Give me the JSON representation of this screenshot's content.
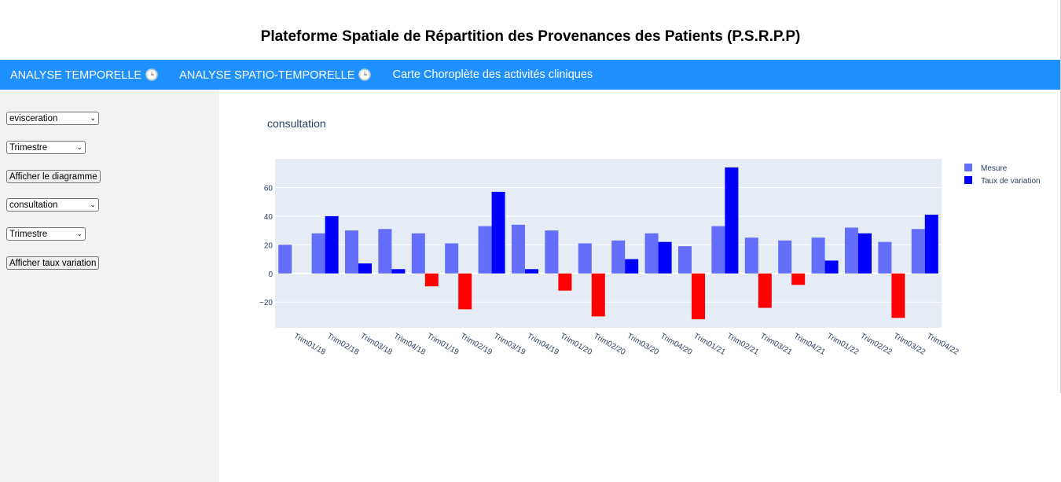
{
  "app": {
    "title": "Plateforme Spatiale de Répartition des Provenances des Patients (P.S.R.P.P)"
  },
  "nav": {
    "items": [
      {
        "label": "ANALYSE TEMPORELLE 🕒"
      },
      {
        "label": "ANALYSE SPATIO-TEMPORELLE 🕒"
      },
      {
        "label": "Carte Choroplète des activités cliniques"
      }
    ]
  },
  "sidebar": {
    "dropdown1": "evisceration",
    "period1": "Trimestre",
    "show_diagram_label": "Afficher le diagramme",
    "dropdown2": "consultation",
    "period2": "Trimestre",
    "show_rate_label": "Afficher taux variation"
  },
  "colors": {
    "nav": "#1e90ff",
    "mesure": "#636efa",
    "taux_positive": "#0000ff",
    "taux_negative": "#ff0000",
    "plot_bg": "#e5ecf6"
  },
  "chart_data": {
    "type": "bar",
    "title": "consultation",
    "categories": [
      "Trim01/18",
      "Trim02/18",
      "Trim03/18",
      "Trim04/18",
      "Trim01/19",
      "Trim02/19",
      "Trim03/19",
      "Trim04/19",
      "Trim01/20",
      "Trim02/20",
      "Trim03/20",
      "Trim04/20",
      "Trim01/21",
      "Trim02/21",
      "Trim03/21",
      "Trim04/21",
      "Trim01/22",
      "Trim02/22",
      "Trim03/22",
      "Trim04/22"
    ],
    "series": [
      {
        "name": "Mesure",
        "values": [
          20,
          28,
          30,
          31,
          28,
          21,
          33,
          34,
          30,
          21,
          23,
          28,
          19,
          33,
          25,
          23,
          25,
          32,
          22,
          31
        ]
      },
      {
        "name": "Taux de variation",
        "values": [
          null,
          40,
          7,
          3,
          -9,
          -25,
          57,
          3,
          -12,
          -30,
          10,
          22,
          -32,
          74,
          -24,
          -8,
          9,
          28,
          -31,
          41
        ]
      }
    ],
    "ylim": [
      -38,
      80
    ],
    "yticks": [
      -20,
      0,
      20,
      40,
      60
    ],
    "ytick_labels": [
      "−20",
      "0",
      "20",
      "40",
      "60"
    ],
    "grid": true,
    "legend_position": "top-right"
  }
}
